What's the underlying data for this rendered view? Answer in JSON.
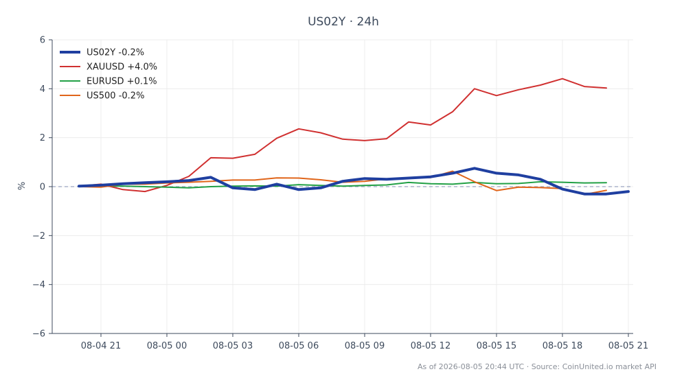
{
  "chart_data": {
    "type": "line",
    "title": "US02Y · 24h",
    "xlabel": "",
    "ylabel": "%",
    "ylim": [
      -6,
      6
    ],
    "yticks": [
      -6,
      -4,
      -2,
      0,
      2,
      4,
      6
    ],
    "ytick_labels": [
      "−6",
      "−4",
      "−2",
      "0",
      "2",
      "4",
      "6"
    ],
    "xtick_labels": [
      "08-04 21",
      "08-05 00",
      "08-05 03",
      "08-05 06",
      "08-05 09",
      "08-05 12",
      "08-05 15",
      "08-05 18",
      "08-05 21"
    ],
    "x_start": "08-04 20",
    "x_step_hours": 1,
    "grid": true,
    "zero_line": true,
    "legend": "top-left",
    "series": [
      {
        "name": "US02Y -0.2%",
        "color": "#1f3fa0",
        "width": 4,
        "values": [
          0.02,
          0.06,
          0.12,
          0.16,
          0.2,
          0.25,
          0.38,
          -0.05,
          -0.12,
          0.1,
          -0.12,
          -0.05,
          0.22,
          0.33,
          0.3,
          0.35,
          0.4,
          0.55,
          0.75,
          0.55,
          0.48,
          0.3,
          -0.1,
          -0.3,
          -0.3,
          -0.2
        ]
      },
      {
        "name": "XAUUSD +4.0%",
        "color": "#d03030",
        "width": 2,
        "values": [
          0.02,
          0.1,
          -0.12,
          -0.2,
          0.05,
          0.42,
          1.18,
          1.16,
          1.32,
          1.98,
          2.36,
          2.2,
          1.94,
          1.88,
          1.96,
          2.64,
          2.52,
          3.06,
          4.0,
          3.72,
          3.96,
          4.15,
          4.41,
          4.09,
          4.03,
          null
        ]
      },
      {
        "name": "EURUSD +0.1%",
        "color": "#22a045",
        "width": 2,
        "values": [
          0.0,
          0.03,
          0.02,
          0.0,
          -0.02,
          -0.05,
          0.0,
          0.02,
          0.03,
          0.02,
          0.08,
          0.05,
          0.02,
          0.05,
          0.07,
          0.17,
          0.12,
          0.1,
          0.17,
          0.12,
          0.13,
          0.2,
          0.18,
          0.15,
          0.16,
          null
        ]
      },
      {
        "name": "US500 -0.2%",
        "color": "#e0651a",
        "width": 2,
        "values": [
          0.0,
          -0.02,
          0.1,
          0.1,
          0.15,
          0.18,
          0.22,
          0.27,
          0.27,
          0.36,
          0.35,
          0.28,
          0.18,
          0.22,
          0.32,
          0.36,
          0.37,
          0.63,
          0.2,
          -0.16,
          -0.02,
          -0.04,
          -0.08,
          -0.32,
          -0.15,
          null
        ]
      }
    ]
  },
  "footer": "As of 2026-08-05 20:44 UTC · Source: CoinUnited.io market API"
}
